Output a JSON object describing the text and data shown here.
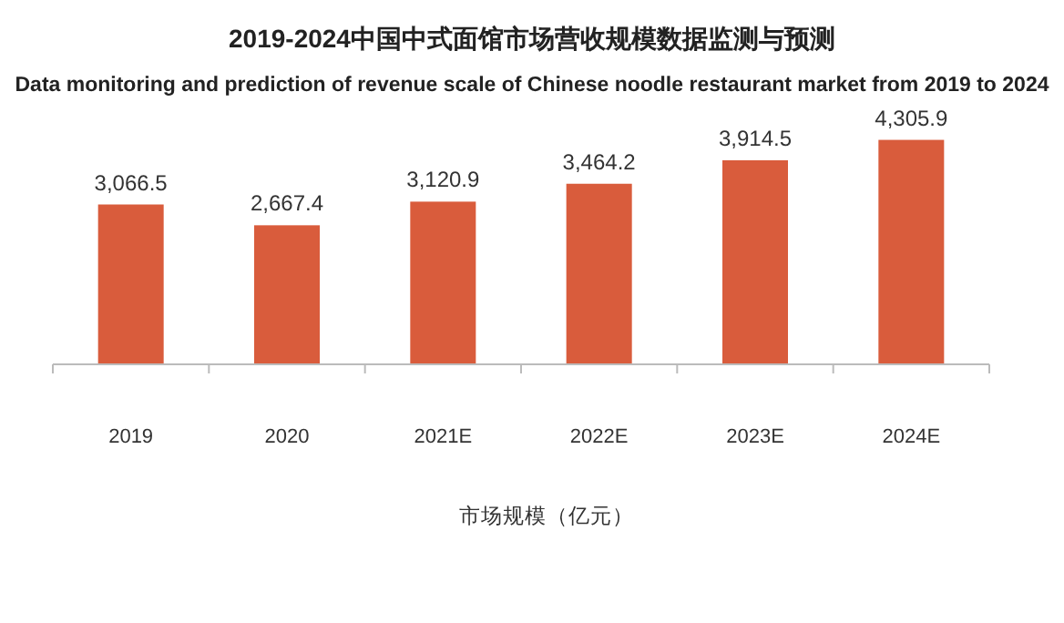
{
  "chart_data": {
    "type": "bar",
    "title": "2019-2024中国中式面馆市场营收规模数据监测与预测",
    "subtitle": "Data monitoring and prediction of revenue scale of Chinese noodle restaurant market from 2019 to 2024",
    "categories": [
      "2019",
      "2020",
      "2021E",
      "2022E",
      "2023E",
      "2024E"
    ],
    "series": [
      {
        "name": "市场规模（亿元）",
        "color": "#d95c3c",
        "values": [
          3066.5,
          2667.4,
          3120.9,
          3464.2,
          3914.5,
          4305.9
        ],
        "value_labels": [
          "3,066.5",
          "2,667.4",
          "3,120.9",
          "3,464.2",
          "3,914.5",
          "4,305.9"
        ]
      }
    ],
    "legend": "bottom",
    "grid": false
  }
}
